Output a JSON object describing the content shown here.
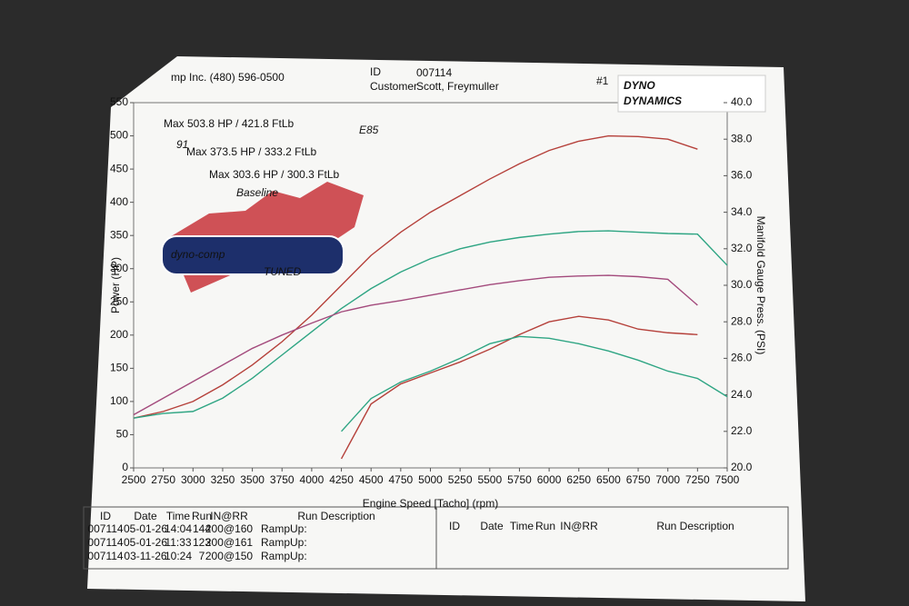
{
  "header": {
    "company": "mp Inc. (480) 596-0500",
    "id_label": "ID",
    "id": "007114",
    "customer_label": "Customer",
    "customer": "Scott, Freymuller",
    "page": "#1",
    "logo_top": "DYNO",
    "logo_bottom": "DYNAMICS"
  },
  "chart_data": {
    "type": "line",
    "x_label": "Engine Speed [Tacho] (rpm)",
    "y_label": "Power (HP)",
    "y2_label": "Manifold Gauge Press. (PSI)",
    "annotations": [
      "Max 503.8 HP  / 421.8 FtLb",
      "E85",
      "91",
      "Max 373.5 HP  / 333.2 FtLb",
      "Max 303.6 HP  / 300.3 FtLb",
      "Baseline",
      "dyno-comp",
      "TUNED"
    ],
    "x": [
      2500,
      2750,
      3000,
      3250,
      3500,
      3750,
      4000,
      4250,
      4500,
      4750,
      5000,
      5250,
      5500,
      5750,
      6000,
      6250,
      6500,
      6750,
      7000,
      7250,
      7500
    ],
    "xlim": [
      2500,
      7500
    ],
    "xticks": [
      2500,
      2750,
      3000,
      3250,
      3500,
      3750,
      4000,
      4250,
      4500,
      4750,
      5000,
      5250,
      5500,
      5750,
      6000,
      6250,
      6500,
      6750,
      7000,
      7250,
      7500
    ],
    "ylim": [
      0,
      550
    ],
    "yticks": [
      0,
      50,
      100,
      150,
      200,
      250,
      300,
      350,
      400,
      450,
      500,
      550
    ],
    "y2lim": [
      20,
      40
    ],
    "y2ticks": [
      {
        "value": 20,
        "label": "20.0"
      },
      {
        "value": 22,
        "label": "22.0"
      },
      {
        "value": 24,
        "label": "24.0"
      },
      {
        "value": 26,
        "label": "26.0"
      },
      {
        "value": 28,
        "label": "28.0"
      },
      {
        "value": 30,
        "label": "30.0"
      },
      {
        "value": 32,
        "label": "32.0"
      },
      {
        "value": 34,
        "label": "34.0"
      },
      {
        "value": 36,
        "label": "36.0"
      },
      {
        "value": 38,
        "label": "38.0"
      },
      {
        "value": 40,
        "label": "40.0"
      }
    ],
    "grid": false,
    "series": [
      {
        "color": "#b5403a",
        "values": [
          75,
          85,
          100,
          125,
          155,
          190,
          230,
          275,
          320,
          355,
          385,
          410,
          435,
          458,
          478,
          492,
          500,
          499,
          495,
          480,
          null
        ]
      },
      {
        "color": "#2ea583",
        "values": [
          75,
          82,
          85,
          105,
          135,
          170,
          205,
          240,
          270,
          295,
          315,
          330,
          340,
          347,
          352,
          356,
          357,
          355,
          353,
          352,
          305
        ]
      },
      {
        "color": "#a34a7c",
        "values": [
          80,
          105,
          130,
          155,
          180,
          200,
          218,
          235,
          245,
          252,
          260,
          268,
          276,
          282,
          287,
          289,
          290,
          288,
          284,
          245,
          null
        ]
      },
      {
        "color": "#b5403a",
        "axis": "y2",
        "values": [
          null,
          null,
          null,
          null,
          null,
          null,
          null,
          20.5,
          23.5,
          24.6,
          25.2,
          25.8,
          26.5,
          27.3,
          28.0,
          28.3,
          28.1,
          27.6,
          27.4,
          27.3,
          null
        ]
      },
      {
        "color": "#2ea583",
        "axis": "y2",
        "values": [
          null,
          null,
          null,
          null,
          null,
          null,
          null,
          22.0,
          23.8,
          24.7,
          25.3,
          26.0,
          26.8,
          27.2,
          27.1,
          26.8,
          26.4,
          25.9,
          25.3,
          24.9,
          23.9
        ]
      }
    ]
  },
  "table": {
    "headers": [
      "ID",
      "Date",
      "Time",
      "Run",
      "IN@RR",
      "Run Description"
    ],
    "rows": [
      [
        "007114",
        "05-01-26",
        "14:04",
        "144",
        "200@160",
        "RampUp:"
      ],
      [
        "007114",
        "05-01-26",
        "11:33",
        "123",
        "200@161",
        "RampUp:"
      ],
      [
        "007114",
        "03-11-26",
        "10:24",
        "7",
        "200@150",
        "RampUp:"
      ]
    ],
    "right_headers": [
      "ID",
      "Date",
      "Time",
      "Run",
      "IN@RR",
      "Run Description"
    ]
  }
}
